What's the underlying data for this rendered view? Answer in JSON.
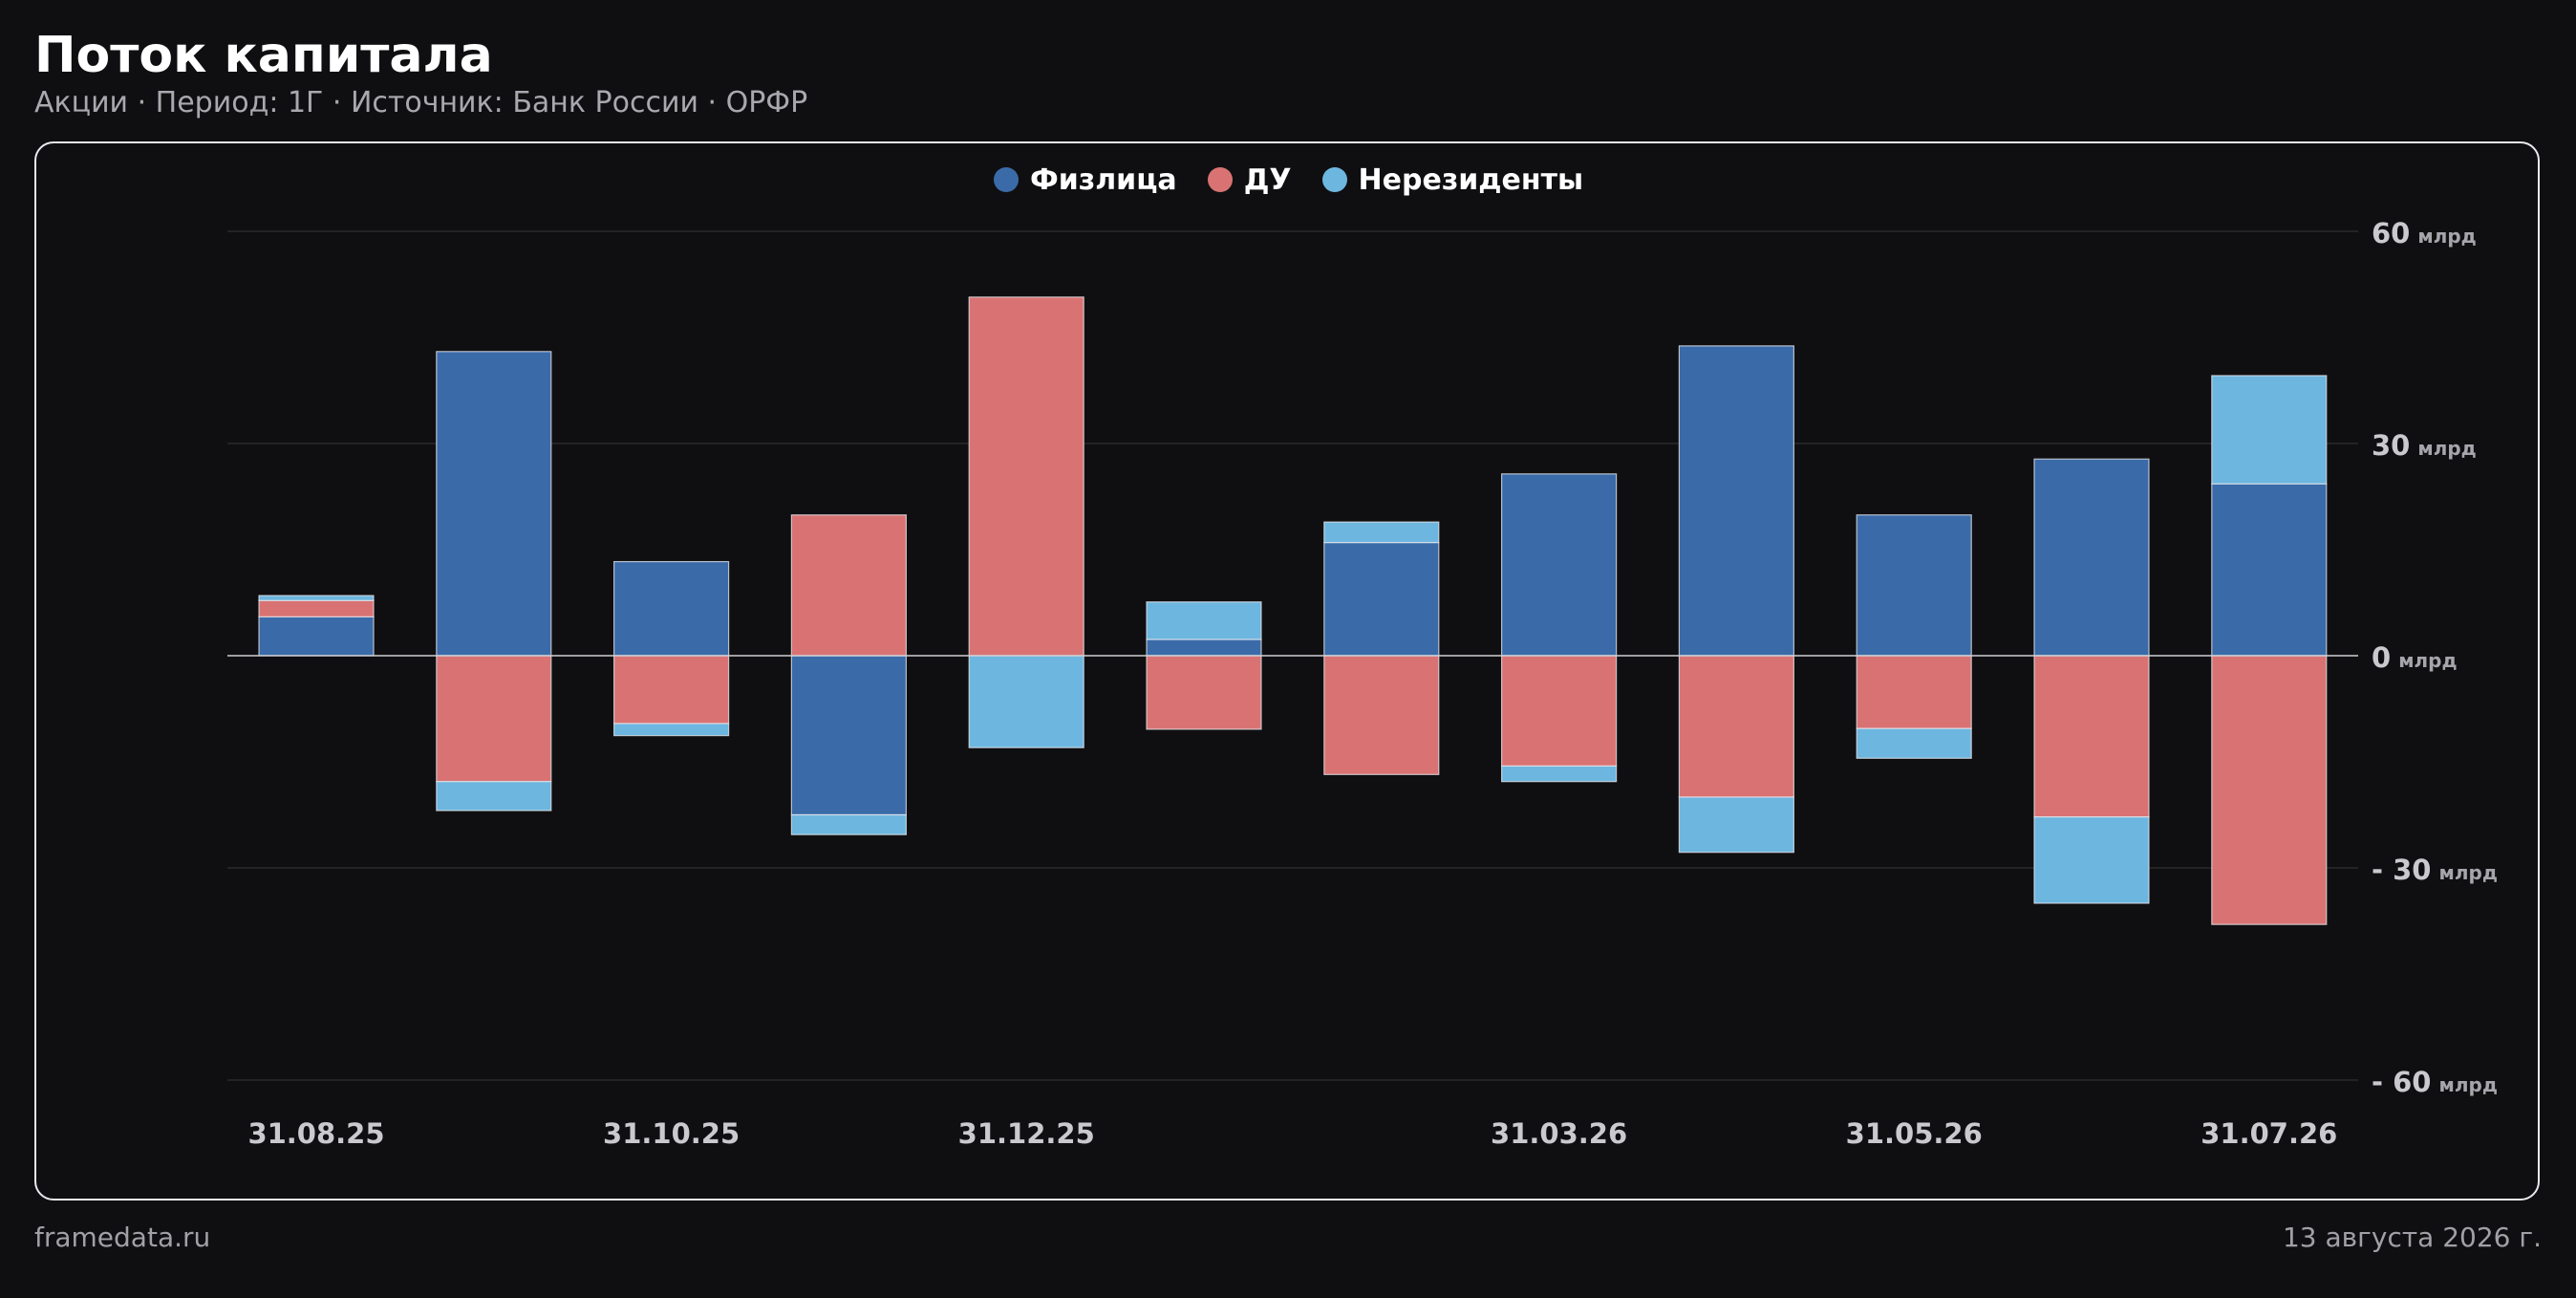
{
  "header": {
    "title": "Поток капитала",
    "subtitle": "Акции · Период: 1Г · Источник: Банк России · ОРФР"
  },
  "footer": {
    "site": "framedata.ru",
    "date": "13 августа 2026 г."
  },
  "colors": {
    "background": "#0f0f11",
    "individuals": "#3a6ba8",
    "du": "#d97373",
    "nonresidents": "#6db6df",
    "grid": "#2a2a2e",
    "zero_line": "#cfcfd4"
  },
  "legend": {
    "items": [
      {
        "label": "Физлица",
        "color": "#3a6ba8"
      },
      {
        "label": "ДУ",
        "color": "#d97373"
      },
      {
        "label": "Нерезиденты",
        "color": "#6db6df"
      }
    ]
  },
  "chart_data": {
    "type": "bar",
    "stacked": true,
    "x_tick_labels": [
      "31.08.25",
      "31.10.25",
      "31.12.25",
      "31.03.26",
      "31.05.26",
      "31.07.26"
    ],
    "x_tick_index": [
      0,
      2,
      4,
      7,
      9,
      11
    ],
    "y_ticks": [
      {
        "value": 60,
        "label": "60",
        "unit": "млрд"
      },
      {
        "value": 30,
        "label": "30",
        "unit": "млрд"
      },
      {
        "value": 0,
        "label": "0",
        "unit": "млрд"
      },
      {
        "value": -30,
        "label": "- 30",
        "unit": "млрд"
      },
      {
        "value": -60,
        "label": "- 60",
        "unit": "млрд"
      }
    ],
    "ylim": [
      -60,
      60
    ],
    "y_axis_position": "right",
    "grid": true,
    "legend_position": "top-center",
    "series": [
      {
        "name": "Физлица",
        "color": "#3a6ba8",
        "values": [
          5.5,
          43,
          13.3,
          -22.5,
          0,
          2.3,
          16,
          25.7,
          43.8,
          19.9,
          27.8,
          24.3
        ]
      },
      {
        "name": "ДУ",
        "color": "#d97373",
        "values": [
          2.3,
          -17.8,
          -9.6,
          19.9,
          50.7,
          -10.4,
          -16.8,
          -15.6,
          -20,
          -10.3,
          -22.8,
          -38
        ]
      },
      {
        "name": "Нерезиденты",
        "color": "#6db6df",
        "values": [
          0.7,
          -4.1,
          -1.7,
          -2.8,
          -13,
          5.3,
          2.9,
          -2.2,
          -7.8,
          -4.2,
          -12.2,
          15.3
        ]
      }
    ]
  }
}
